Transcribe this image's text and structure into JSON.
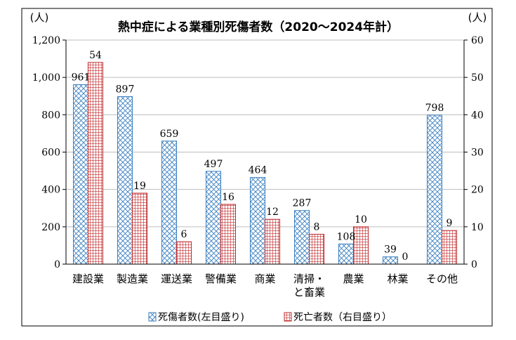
{
  "chart_data": {
    "type": "bar",
    "title": "熱中症による業種別死傷者数（2020〜2024年計）",
    "y_left_unit": "(人)",
    "y_right_unit": "(人)",
    "categories": [
      [
        "建設業"
      ],
      [
        "製造業"
      ],
      [
        "運送業"
      ],
      [
        "警備業"
      ],
      [
        "商業"
      ],
      [
        "清掃・",
        "と畜業"
      ],
      [
        "農業"
      ],
      [
        "林業"
      ],
      [
        "その他"
      ]
    ],
    "series": [
      {
        "name": "死傷者数(左目盛り)",
        "axis": "left",
        "values": [
          961,
          897,
          659,
          497,
          464,
          287,
          108,
          39,
          798
        ],
        "labels": [
          "961",
          "897",
          "659",
          "497",
          "464",
          "287",
          "108",
          "39",
          "798"
        ],
        "color": "#3a7fc0",
        "pattern": "crosshatch"
      },
      {
        "name": "死亡者数（右目盛り）",
        "axis": "right",
        "values": [
          54,
          19,
          6,
          16,
          12,
          8,
          10,
          0,
          9
        ],
        "labels": [
          "54",
          "19",
          "6",
          "16",
          "12",
          "8",
          "10",
          "0",
          "9"
        ],
        "color": "#c0282a",
        "pattern": "grid"
      }
    ],
    "y_left": {
      "range": [
        0,
        1200
      ],
      "ticks": [
        0,
        200,
        400,
        600,
        800,
        1000,
        1200
      ],
      "tick_labels": [
        "0",
        "200",
        "400",
        "600",
        "800",
        "1,000",
        "1,200"
      ]
    },
    "y_right": {
      "range": [
        0,
        60
      ],
      "ticks": [
        0,
        10,
        20,
        30,
        40,
        50,
        60
      ],
      "tick_labels": [
        "0",
        "10",
        "20",
        "30",
        "40",
        "50",
        "60"
      ]
    },
    "grid": true,
    "legend_position": "bottom"
  }
}
